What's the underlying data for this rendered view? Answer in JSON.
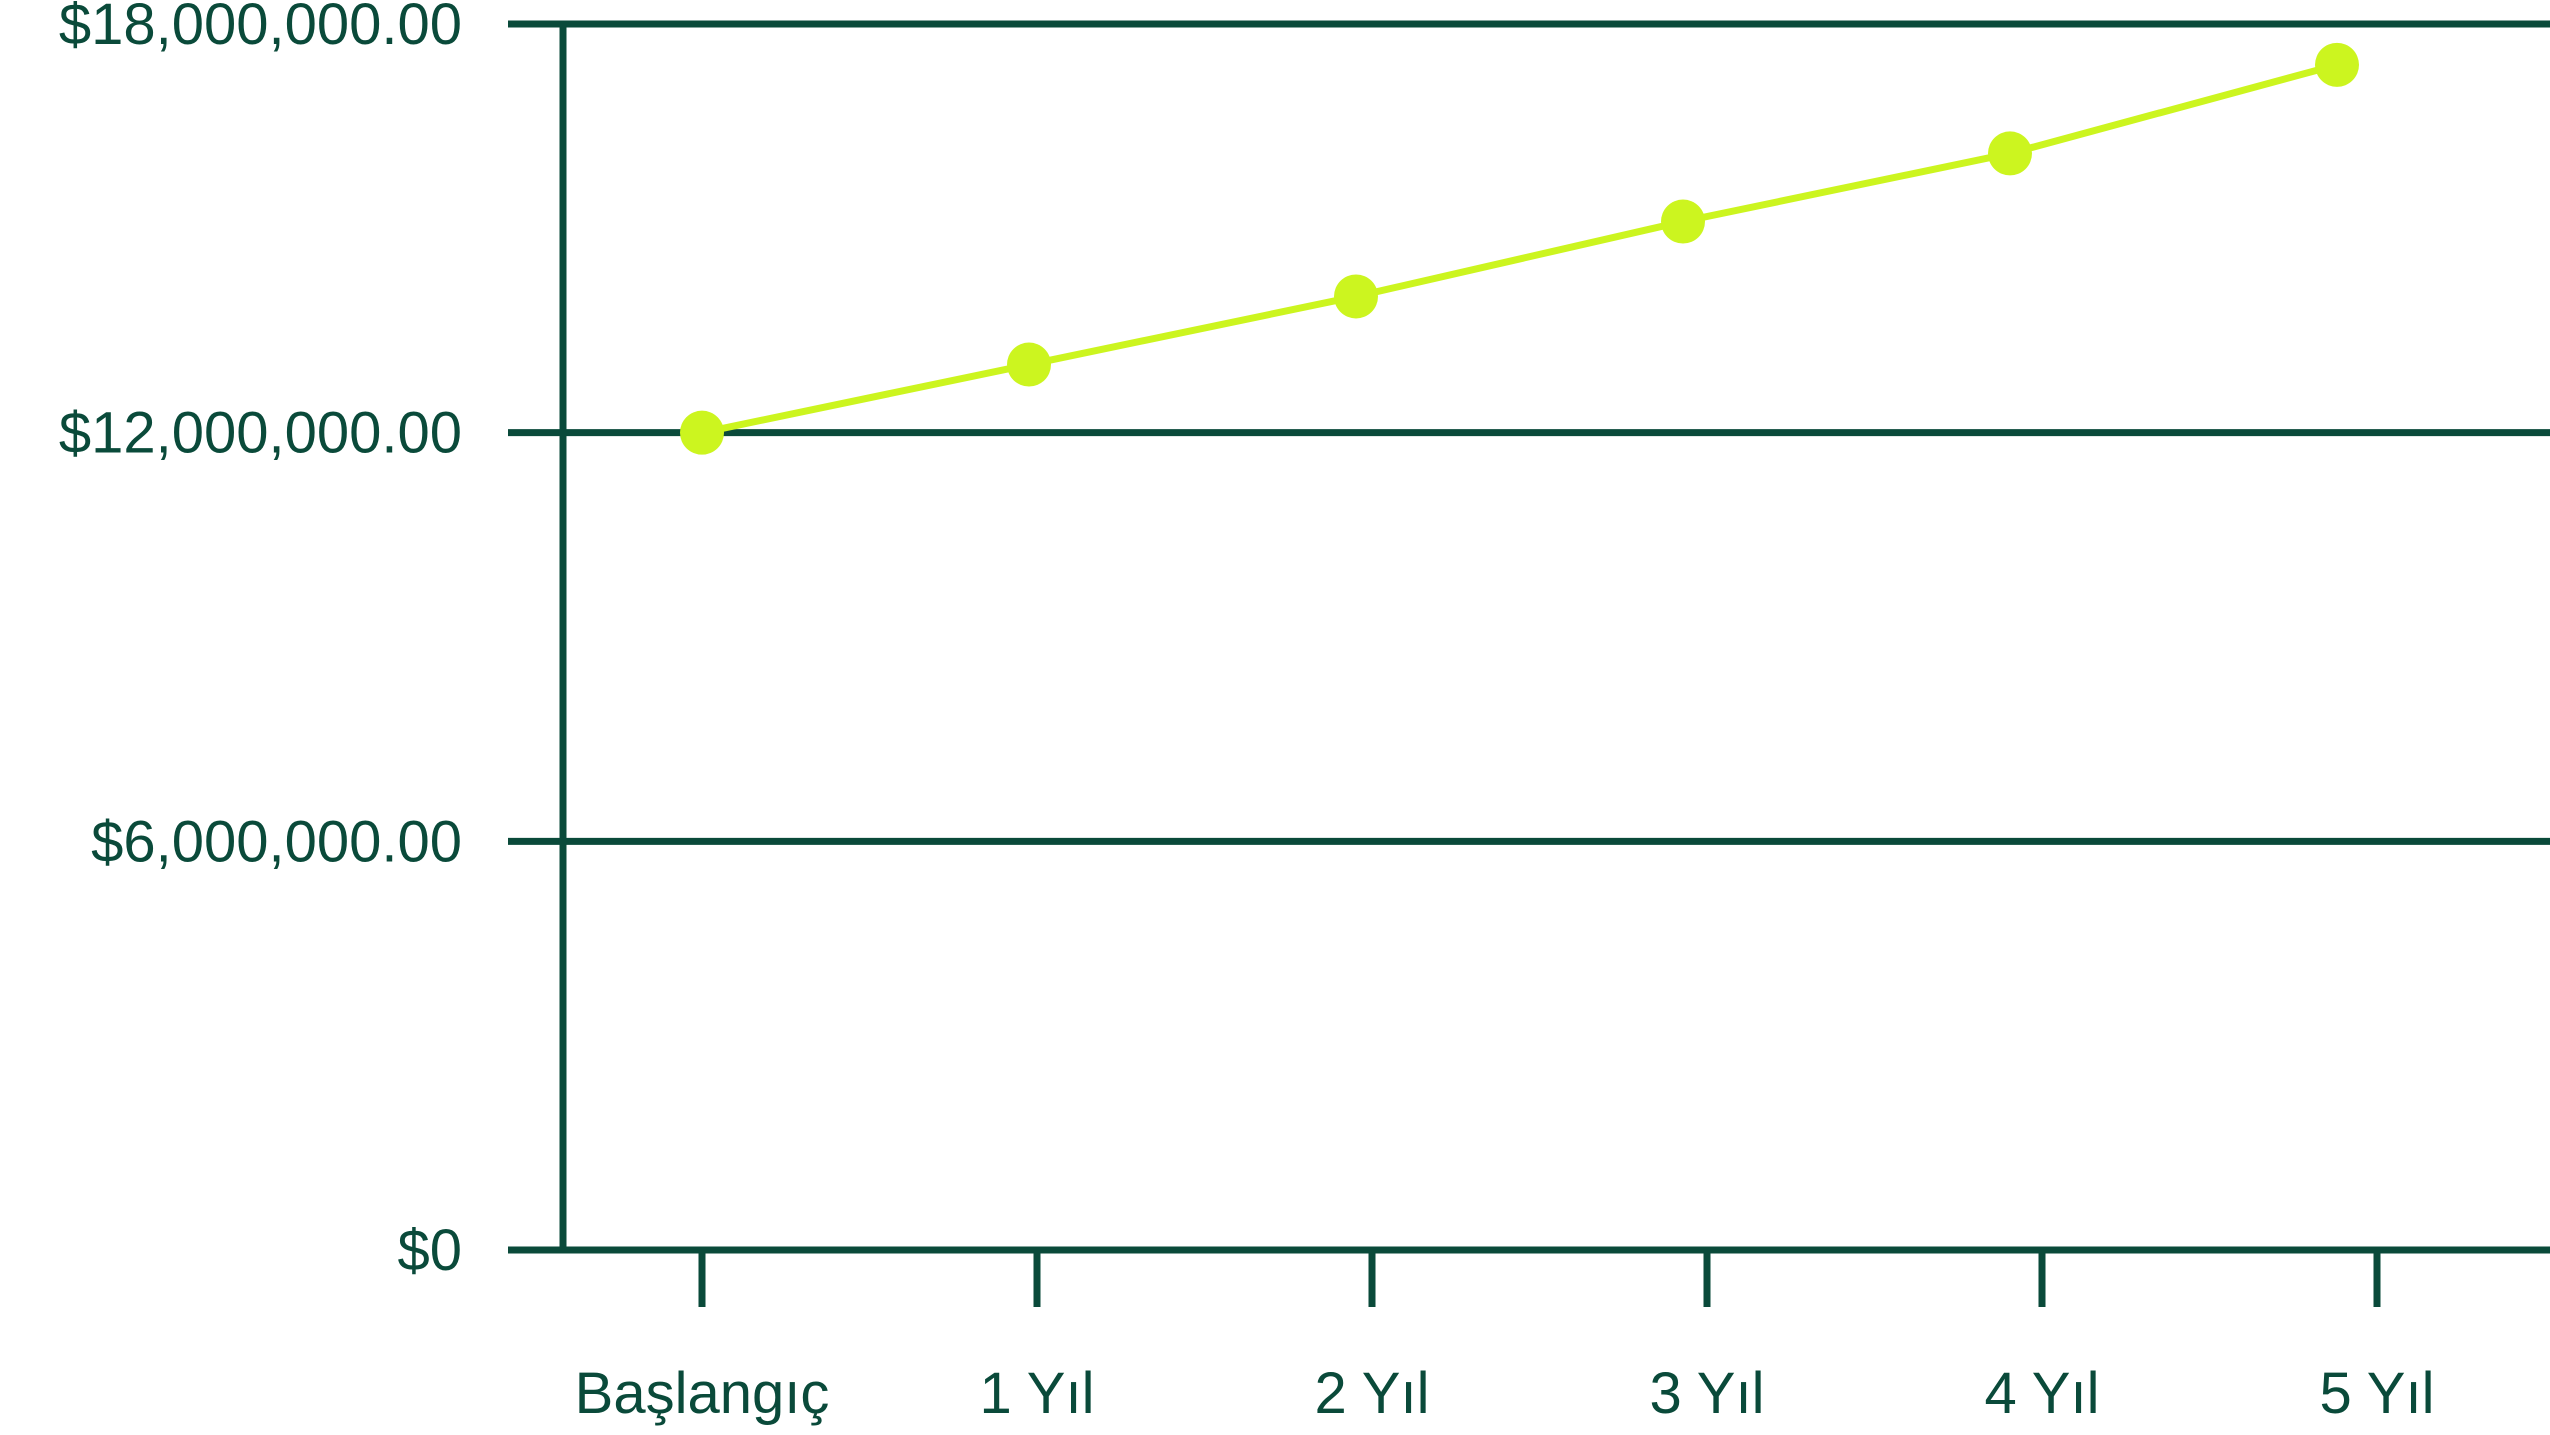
{
  "chart_data": {
    "type": "line",
    "title": "",
    "xlabel": "",
    "ylabel": "",
    "categories": [
      "Başlangıç",
      "1 Yıl",
      "2 Yıl",
      "3 Yıl",
      "4 Yıl",
      "5 Yıl"
    ],
    "series": [
      {
        "values": [
          12000000,
          13000000,
          14000000,
          15100000,
          16100000,
          17400000
        ]
      }
    ],
    "y_ticks": [
      0,
      6000000,
      12000000,
      18000000
    ],
    "y_tick_labels": [
      "$0",
      "$6,000,000.00",
      "$12,000,000.00",
      "$18,000,000.00"
    ],
    "ylim": [
      0,
      18000000
    ],
    "grid": true,
    "legend": "none",
    "colors": {
      "axis": "#0a4a3a",
      "grid": "#0a4a3a",
      "line": "#ccf51f",
      "marker": "#ccf51f",
      "label": "#0a4a3a"
    }
  }
}
